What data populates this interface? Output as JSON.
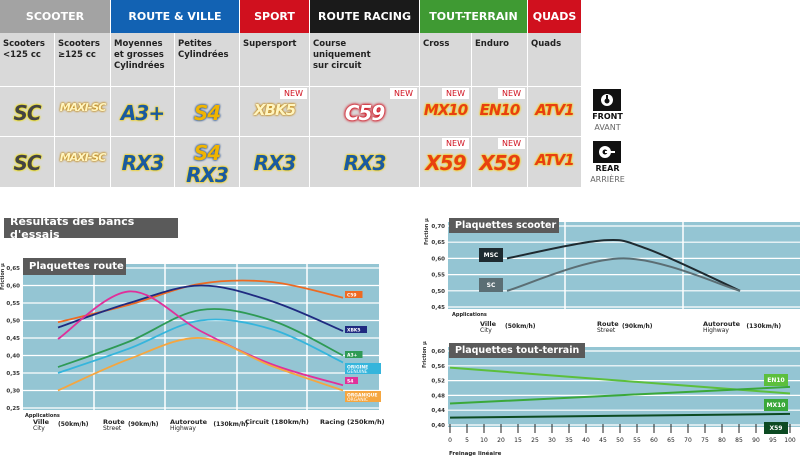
{
  "categories": [
    {
      "label": "SCOOTER",
      "color": "#a3a3a3"
    },
    {
      "label": "ROUTE & VILLE",
      "color": "#1262b3"
    },
    {
      "label": "SPORT",
      "color": "#d0101e"
    },
    {
      "label": "ROUTE RACING",
      "color": "#1a1a1a"
    },
    {
      "label": "TOUT-TERRAIN",
      "color": "#3f9a33"
    },
    {
      "label": "QUADS",
      "color": "#d0101e"
    }
  ],
  "columns": [
    {
      "label": "Scooters\n<125 cc",
      "front": "SC",
      "rear": "SC"
    },
    {
      "label": "Scooters\n≥125 cc",
      "front": "MAXI-SC",
      "rear": "MAXI-SC"
    },
    {
      "label": "Moyennes\net grosses\nCylindrées",
      "front": "A3+",
      "rear": "RX3"
    },
    {
      "label": "Petites\nCylindrées",
      "front": "S4",
      "rear": "S4",
      "rear2": "RX3"
    },
    {
      "label": "Supersport",
      "front": "XBK5",
      "rear": "RX3",
      "front_new": "NEW"
    },
    {
      "label": "Course\nuniquement\nsur circuit",
      "front": "C59",
      "rear": "RX3",
      "front_new": "NEW"
    },
    {
      "label": "Cross",
      "front": "MX10",
      "rear": "X59",
      "front_new": "NEW",
      "rear_new": "NEW"
    },
    {
      "label": "Enduro",
      "front": "EN10",
      "rear": "X59",
      "front_new": "NEW",
      "rear_new": "NEW"
    },
    {
      "label": "Quads",
      "front": "ATV1",
      "rear": "ATV1"
    }
  ],
  "front": {
    "icon": "front-wheel-icon",
    "label": "FRONT",
    "sub": "AVANT"
  },
  "rear": {
    "icon": "rear-wheel-icon",
    "label": "REAR",
    "sub": "ARRIÈRE"
  },
  "section_title": "Résultats des bancs d'essais",
  "chart_data": [
    {
      "type": "line",
      "title": "Plaquettes route",
      "ylabel": "Friction μ",
      "xlabel": "Applications",
      "categories": [
        {
          "main": "Ville",
          "sub": "City",
          "speed": "(50km/h)"
        },
        {
          "main": "Route",
          "sub": "Street",
          "speed": "(90km/h)"
        },
        {
          "main": "Autoroute",
          "sub": "Highway",
          "speed": "(130km/h)"
        },
        {
          "main": "Circuit (180km/h)",
          "sub": "",
          "speed": ""
        },
        {
          "main": "Racing (250km/h)",
          "sub": "",
          "speed": ""
        }
      ],
      "yticks": [
        "0,65",
        "0,60",
        "0,55",
        "0,50",
        "0,45",
        "0,40",
        "0,35",
        "0,30",
        "0,25"
      ],
      "ylim": [
        0.25,
        0.65
      ],
      "grid": true,
      "series": [
        {
          "name": "C59",
          "color": "#ee6a22",
          "values": [
            0.495,
            0.545,
            0.605,
            0.61,
            0.565
          ]
        },
        {
          "name": "XBK5",
          "color": "#1f2a80",
          "values": [
            0.48,
            0.55,
            0.6,
            0.555,
            0.47
          ]
        },
        {
          "name": "A3+",
          "color": "#2e9a55",
          "values": [
            0.367,
            0.44,
            0.53,
            0.5,
            0.4
          ]
        },
        {
          "name": "ORIGINE",
          "name2": "GENUINE",
          "color": "#35b5dc",
          "values": [
            0.35,
            0.42,
            0.5,
            0.475,
            0.38
          ]
        },
        {
          "name": "S4",
          "color": "#e0309a",
          "values": [
            0.447,
            0.583,
            0.47,
            0.375,
            0.315
          ]
        },
        {
          "name": "ORGANIQUE",
          "name2": "ORGANIC",
          "color": "#f5a640",
          "values": [
            0.3,
            0.39,
            0.45,
            0.37,
            0.3
          ]
        }
      ]
    },
    {
      "type": "line",
      "title": "Plaquettes scooter",
      "ylabel": "Friction μ",
      "xlabel": "Applications",
      "categories": [
        {
          "main": "Ville",
          "sub": "City",
          "speed": "(50km/h)"
        },
        {
          "main": "Route",
          "sub": "Street",
          "speed": "(90km/h)"
        },
        {
          "main": "Autoroute",
          "sub": "Highway",
          "speed": "(130km/h)"
        }
      ],
      "yticks": [
        "0,70",
        "0,65",
        "0,60",
        "0,55",
        "0,50",
        "0,45"
      ],
      "ylim": [
        0.45,
        0.7
      ],
      "grid": true,
      "series": [
        {
          "name": "MSC",
          "color": "#1e2a30",
          "label_bg": "#1e2a30",
          "points": [
            [
              0,
              0.6
            ],
            [
              0.8,
              0.655
            ],
            [
              1.2,
              0.63
            ],
            [
              2,
              0.5
            ]
          ]
        },
        {
          "name": "SC",
          "color": "#5b6e74",
          "label_bg": "#5b6e74",
          "points": [
            [
              0,
              0.5
            ],
            [
              1,
              0.6
            ],
            [
              2,
              0.5
            ]
          ]
        }
      ]
    },
    {
      "type": "line",
      "title": "Plaquettes tout-terrain",
      "ylabel": "Friction μ",
      "xlabel": "Freinage linéaire",
      "xticks": [
        "0",
        "5",
        "10",
        "20",
        "15",
        "25",
        "30",
        "35",
        "40",
        "45",
        "50",
        "55",
        "60",
        "65",
        "70",
        "75",
        "80",
        "85",
        "90",
        "95",
        "100"
      ],
      "yticks": [
        "0,60",
        "0,56",
        "0,52",
        "0,48",
        "0,44",
        "0,40"
      ],
      "ylim": [
        0.4,
        0.6
      ],
      "xlim": [
        0,
        100
      ],
      "grid": true,
      "series": [
        {
          "name": "EN10",
          "color": "#5cbf3c",
          "points": [
            [
              0,
              0.555
            ],
            [
              100,
              0.485
            ]
          ]
        },
        {
          "name": "MX10",
          "color": "#3aa83a",
          "points": [
            [
              0,
              0.458
            ],
            [
              100,
              0.503
            ]
          ]
        },
        {
          "name": "X59",
          "color": "#0c4a22",
          "points": [
            [
              0,
              0.42
            ],
            [
              100,
              0.43
            ]
          ]
        }
      ]
    }
  ]
}
